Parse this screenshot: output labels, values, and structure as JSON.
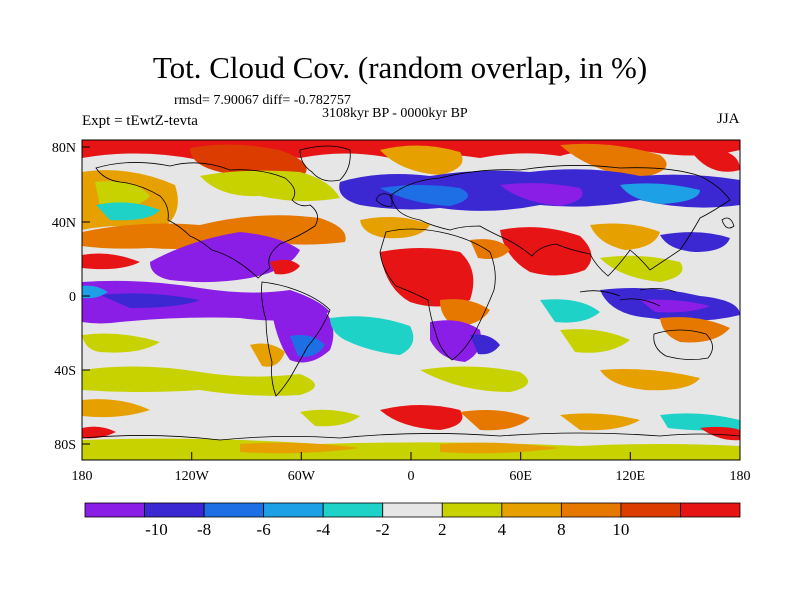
{
  "title": "Tot. Cloud Cov. (random overlap, in %)",
  "stats": "rmsd= 7.90067 diff= -0.782757",
  "experiment": "Expt = tEwtZ-tevta",
  "period": "3108kyr BP - 0000kyr BP",
  "season": "JJA",
  "lon_ticks": [
    "180",
    "120W",
    "60W",
    "0",
    "60E",
    "120E",
    "180"
  ],
  "lat_ticks": [
    "80N",
    "40N",
    "0",
    "40S",
    "80S"
  ],
  "colorbar": {
    "colors": [
      "#8a1ee6",
      "#3c28d2",
      "#1e6ee6",
      "#1ea0e6",
      "#1ed2c8",
      "#e6e6e6",
      "#c8d200",
      "#e6a000",
      "#e67800",
      "#dc3c00",
      "#e61414"
    ],
    "labels": [
      "-10",
      "-8",
      "-6",
      "-4",
      "-2",
      "2",
      "4",
      "8",
      "10"
    ]
  }
}
